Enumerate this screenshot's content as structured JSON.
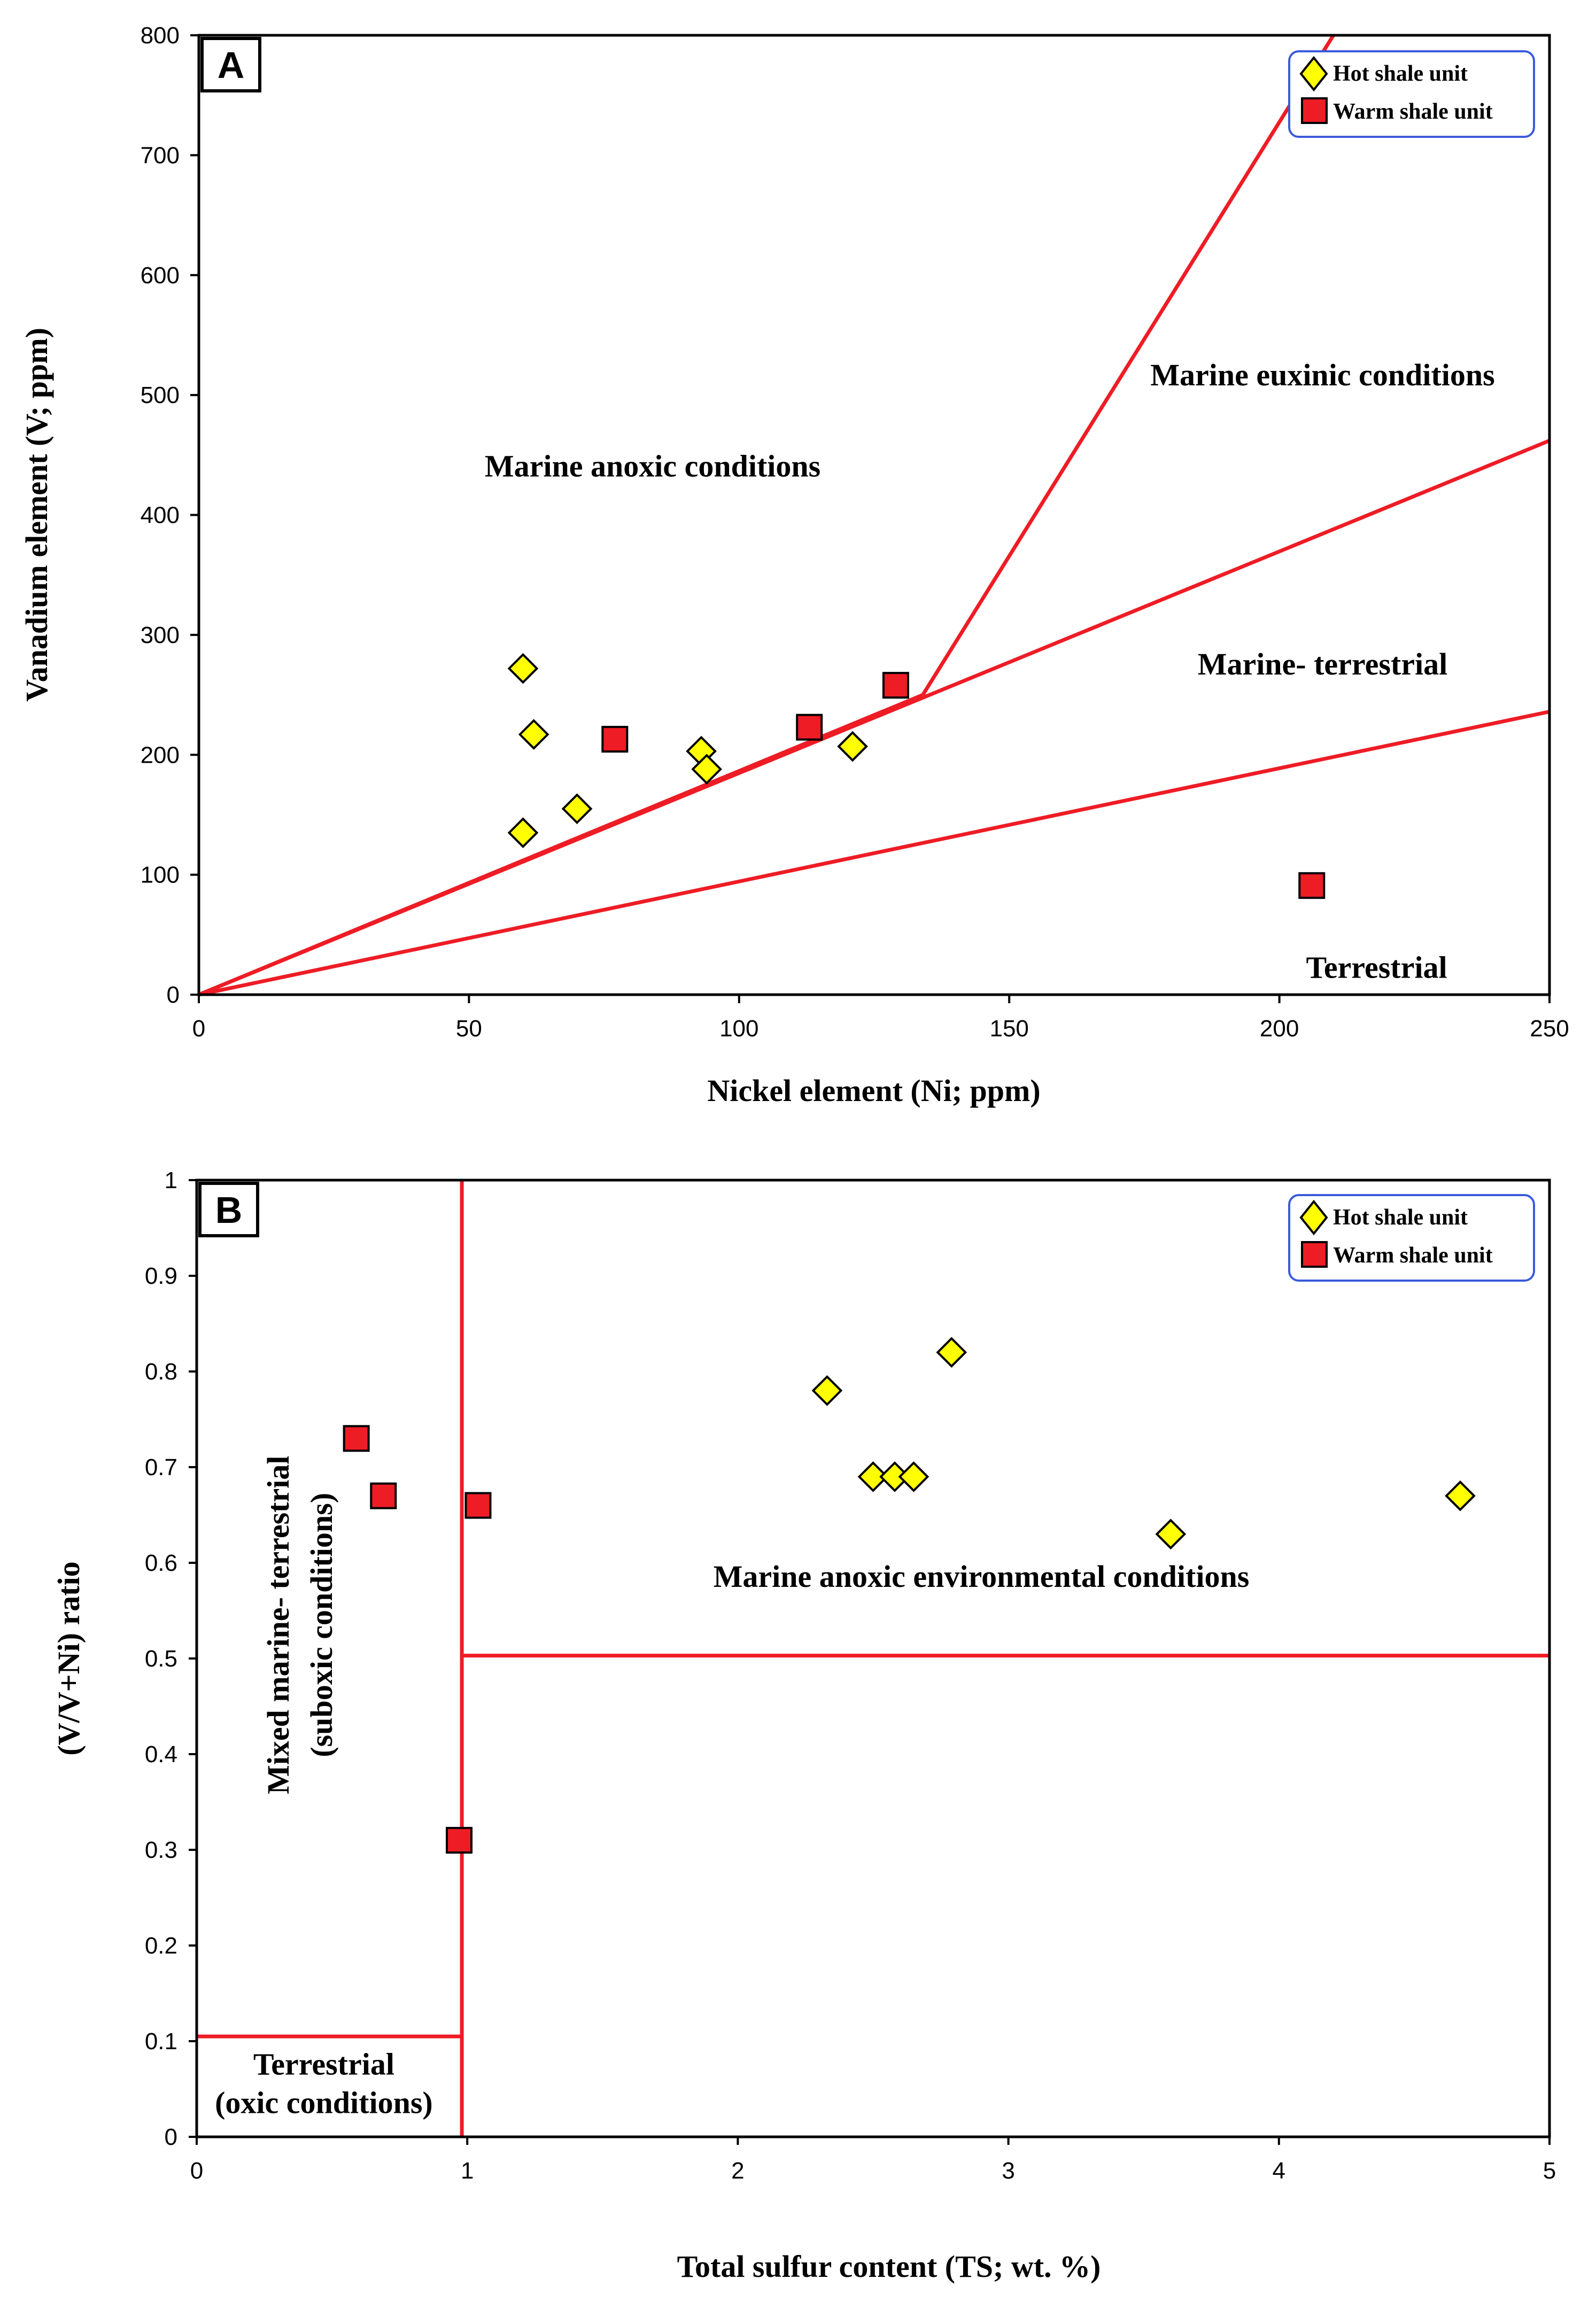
{
  "colors": {
    "hot": "#ffff00",
    "warm": "#ee1c25",
    "lines": "#ee1c25",
    "legend_border": "#3b5bdb"
  },
  "chart_data": [
    {
      "panel": "A",
      "type": "scatter",
      "xlabel": "Nickel element (Ni; ppm)",
      "ylabel": "Vanadium element (V; ppm)",
      "xlim": [
        0,
        250
      ],
      "ylim": [
        0,
        800
      ],
      "xticks": [
        0,
        50,
        100,
        150,
        200,
        250
      ],
      "yticks": [
        0,
        100,
        200,
        300,
        400,
        500,
        600,
        700,
        800
      ],
      "grid": false,
      "legend_position": "top-right",
      "series": [
        {
          "name": "Hot shale unit",
          "marker": "diamond",
          "points": [
            [
              60,
              272
            ],
            [
              62,
              217
            ],
            [
              60,
              135
            ],
            [
              70,
              155
            ],
            [
              93,
              203
            ],
            [
              94,
              188
            ],
            [
              121,
              207
            ]
          ]
        },
        {
          "name": "Warm shale unit",
          "marker": "square",
          "points": [
            [
              77,
              213
            ],
            [
              113,
              223
            ],
            [
              129,
              258
            ],
            [
              206,
              91
            ]
          ]
        }
      ],
      "reference_lines": [
        [
          [
            0,
            0
          ],
          [
            134,
            250
          ]
        ],
        [
          [
            134,
            250
          ],
          [
            210,
            800
          ]
        ],
        [
          [
            0,
            0
          ],
          [
            250,
            462
          ]
        ],
        [
          [
            0,
            0
          ],
          [
            250,
            236
          ]
        ]
      ],
      "annotations": [
        {
          "text": "Marine anoxic conditions",
          "x": 84,
          "y": 432
        },
        {
          "text": "Marine euxinic conditions",
          "x": 208,
          "y": 508
        },
        {
          "text": "Marine- terrestrial",
          "x": 208,
          "y": 267
        },
        {
          "text": "Terrestrial",
          "x": 218,
          "y": 14
        }
      ]
    },
    {
      "panel": "B",
      "type": "scatter",
      "xlabel": "Total sulfur content (TS; wt. %)",
      "ylabel": "(V/V+Ni) ratio",
      "xlim": [
        0,
        5
      ],
      "ylim": [
        0,
        1
      ],
      "xticks": [
        0,
        1,
        2,
        3,
        4,
        5
      ],
      "yticks": [
        0,
        0.1,
        0.2,
        0.3,
        0.4,
        0.5,
        0.6,
        0.7,
        0.8,
        0.9,
        1
      ],
      "grid": false,
      "legend_position": "top-right",
      "series": [
        {
          "name": "Hot shale unit",
          "marker": "diamond",
          "points": [
            [
              2.33,
              0.78
            ],
            [
              2.5,
              0.69
            ],
            [
              2.58,
              0.69
            ],
            [
              2.65,
              0.69
            ],
            [
              2.79,
              0.82
            ],
            [
              3.6,
              0.63
            ],
            [
              4.67,
              0.67
            ]
          ]
        },
        {
          "name": "Warm shale unit",
          "marker": "square",
          "points": [
            [
              0.59,
              0.73
            ],
            [
              0.69,
              0.67
            ],
            [
              1.04,
              0.66
            ],
            [
              0.97,
              0.31
            ]
          ]
        }
      ],
      "reference_lines": [
        [
          [
            0.98,
            0
          ],
          [
            0.98,
            1
          ]
        ],
        [
          [
            0,
            0.105
          ],
          [
            0.98,
            0.105
          ]
        ],
        [
          [
            0.98,
            0.503
          ],
          [
            5,
            0.503
          ]
        ]
      ],
      "annotations": [
        {
          "text": "Marine anoxic environmental conditions",
          "x": 2.9,
          "y": 0.575
        },
        {
          "text": "Terrestrial",
          "x": 0.47,
          "y": 0.065
        },
        {
          "text": "(oxic conditions)",
          "x": 0.47,
          "y": 0.025
        },
        {
          "text": "Mixed marine- terrestrial",
          "x": 0.34,
          "y": 0.535,
          "rotated": true
        },
        {
          "text": "(suboxic conditions)",
          "x": 0.5,
          "y": 0.535,
          "rotated": true
        }
      ]
    }
  ]
}
